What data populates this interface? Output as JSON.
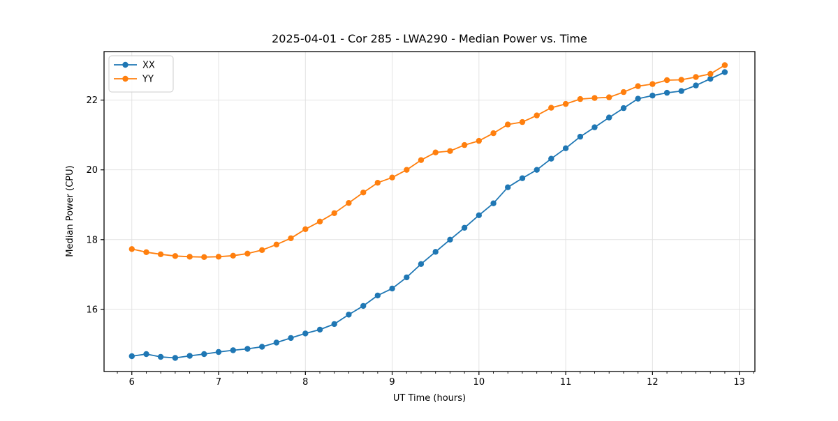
{
  "chart_data": {
    "type": "line",
    "title": "2025-04-01 - Cor 285 - LWA290 - Median Power vs. Time",
    "xlabel": "UT Time (hours)",
    "ylabel": "Median Power (CPU)",
    "xlim": [
      5.68,
      13.18
    ],
    "ylim": [
      14.22,
      23.39
    ],
    "xticks": [
      6,
      7,
      8,
      9,
      10,
      11,
      12,
      13
    ],
    "yticks": [
      16,
      18,
      20,
      22
    ],
    "x_minor_tick_step": 0.166667,
    "grid": "major-only",
    "grid_color": "#e2e2e2",
    "background": "#ffffff",
    "legend_position": "upper-left",
    "x": [
      6.0,
      6.167,
      6.333,
      6.5,
      6.667,
      6.833,
      7.0,
      7.167,
      7.333,
      7.5,
      7.667,
      7.833,
      8.0,
      8.167,
      8.333,
      8.5,
      8.667,
      8.833,
      9.0,
      9.167,
      9.333,
      9.5,
      9.667,
      9.833,
      10.0,
      10.167,
      10.333,
      10.5,
      10.667,
      10.833,
      11.0,
      11.167,
      11.333,
      11.5,
      11.667,
      11.833,
      12.0,
      12.167,
      12.333,
      12.5,
      12.667,
      12.833
    ],
    "series": [
      {
        "name": "XX",
        "color": "#1f77b4",
        "marker": "circle",
        "values": [
          14.66,
          14.72,
          14.64,
          14.61,
          14.67,
          14.72,
          14.78,
          14.83,
          14.87,
          14.93,
          15.05,
          15.18,
          15.31,
          15.42,
          15.58,
          15.85,
          16.1,
          16.4,
          16.6,
          16.92,
          17.3,
          17.65,
          18.0,
          18.34,
          18.7,
          19.04,
          19.5,
          19.76,
          20.0,
          20.32,
          20.62,
          20.95,
          21.22,
          21.5,
          21.77,
          22.04,
          22.13,
          22.21,
          22.26,
          22.42,
          22.61,
          22.8
        ]
      },
      {
        "name": "YY",
        "color": "#ff7f0e",
        "marker": "circle",
        "values": [
          17.73,
          17.64,
          17.58,
          17.53,
          17.51,
          17.5,
          17.51,
          17.54,
          17.6,
          17.7,
          17.86,
          18.04,
          18.3,
          18.52,
          18.76,
          19.05,
          19.35,
          19.63,
          19.78,
          20.0,
          20.28,
          20.5,
          20.54,
          20.71,
          20.83,
          21.05,
          21.3,
          21.37,
          21.56,
          21.78,
          21.89,
          22.03,
          22.06,
          22.08,
          22.23,
          22.4,
          22.46,
          22.57,
          22.58,
          22.66,
          22.75,
          23.0
        ]
      }
    ]
  }
}
